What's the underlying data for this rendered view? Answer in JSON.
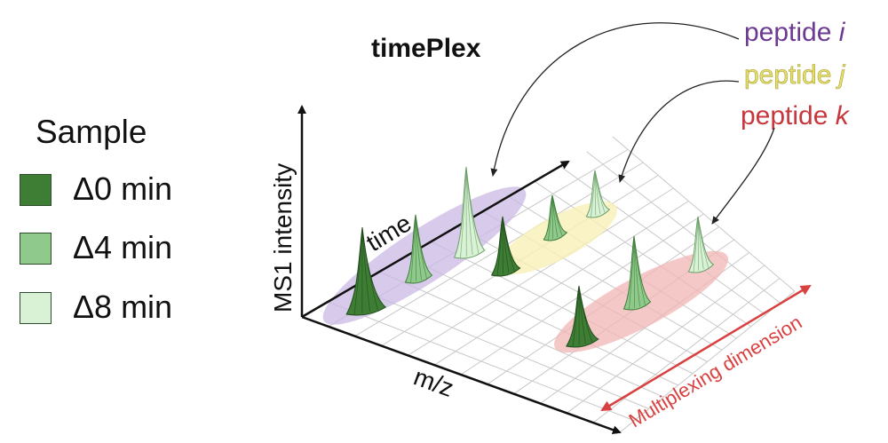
{
  "title": "timePlex",
  "legend": {
    "title": "Sample",
    "items": [
      {
        "label": "Δ0 min",
        "color": "#3e7d34"
      },
      {
        "label": "Δ4 min",
        "color": "#8fc98b"
      },
      {
        "label": "Δ8 min",
        "color": "#d9f2d6"
      }
    ]
  },
  "peptides": [
    {
      "prefix": "peptide ",
      "var": "i",
      "color": "#6d3a93"
    },
    {
      "prefix": "peptide ",
      "var": "j",
      "color": "#e6e071"
    },
    {
      "prefix": "peptide ",
      "var": "k",
      "color": "#c7373d"
    }
  ],
  "axes": {
    "y_label": "MS1 intensity",
    "time_label": "time",
    "x_label": "m/z",
    "multiplex_label": "Multiplexing dimension"
  },
  "colors": {
    "ellipse_i": "#c9b8e3",
    "ellipse_j": "#f7f0b8",
    "ellipse_k": "#f2b5b5",
    "accent_red": "#d94040"
  }
}
